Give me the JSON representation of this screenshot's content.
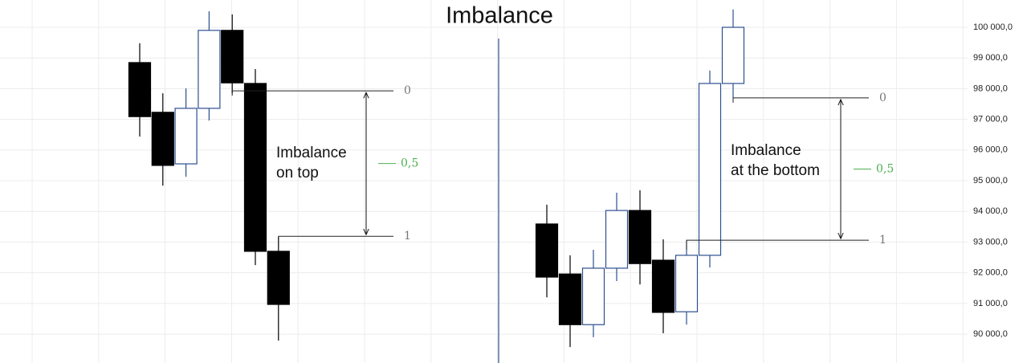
{
  "title": "Imbalance",
  "chart_data": [
    {
      "type": "candlestick",
      "categories": [
        null,
        null,
        null,
        null,
        null,
        null,
        null
      ],
      "open": [
        98850,
        97230,
        95550,
        97360,
        99900,
        98170,
        92700
      ],
      "high": [
        99480,
        97850,
        98010,
        100520,
        100420,
        98640,
        93170
      ],
      "low": [
        96440,
        94840,
        95130,
        96960,
        97850,
        92250,
        89790
      ],
      "close": [
        97090,
        95500,
        97360,
        99900,
        98190,
        92700,
        90970
      ],
      "up_color": "#2c4f8f",
      "down_color": "#000000",
      "ylim": [
        89060,
        100890
      ],
      "levels": [
        {
          "label": "0",
          "value": 97930
        },
        {
          "label": "0,5",
          "value": 95560
        },
        {
          "label": "1",
          "value": 93190
        }
      ],
      "annotation": [
        "Imbalance",
        "on top"
      ]
    },
    {
      "type": "candlestick",
      "categories": [
        null,
        null,
        null,
        null,
        null,
        null,
        null,
        null,
        null
      ],
      "open": [
        93590,
        91960,
        90310,
        92150,
        94030,
        92410,
        90730,
        92570,
        98170
      ],
      "high": [
        94220,
        92570,
        92750,
        94610,
        94690,
        93090,
        93040,
        98590,
        100580
      ],
      "low": [
        91200,
        89580,
        89900,
        91730,
        91620,
        90030,
        90310,
        92170,
        97700
      ],
      "close": [
        91860,
        90310,
        92150,
        94030,
        92300,
        90710,
        92570,
        98170,
        100000
      ],
      "up_color": "#2c4f8f",
      "down_color": "#000000",
      "ylim": [
        89060,
        100890
      ],
      "yticks": [
        {
          "value": 90000,
          "label": "90 000,0"
        },
        {
          "value": 91000,
          "label": "91 000,0"
        },
        {
          "value": 92000,
          "label": "92 000,0"
        },
        {
          "value": 93000,
          "label": "93 000,0"
        },
        {
          "value": 94000,
          "label": "94 000,0"
        },
        {
          "value": 95000,
          "label": "95 000,0"
        },
        {
          "value": 96000,
          "label": "96 000,0"
        },
        {
          "value": 97000,
          "label": "97 000,0"
        },
        {
          "value": 98000,
          "label": "98 000,0"
        },
        {
          "value": 99000,
          "label": "99 000,0"
        },
        {
          "value": 100000,
          "label": "100 000,0"
        }
      ],
      "grid": true,
      "levels": [
        {
          "label": "0",
          "value": 97700
        },
        {
          "label": "0,5",
          "value": 95380
        },
        {
          "label": "1",
          "value": 93060
        }
      ],
      "annotation": [
        "Imbalance",
        "at the bottom"
      ]
    }
  ]
}
